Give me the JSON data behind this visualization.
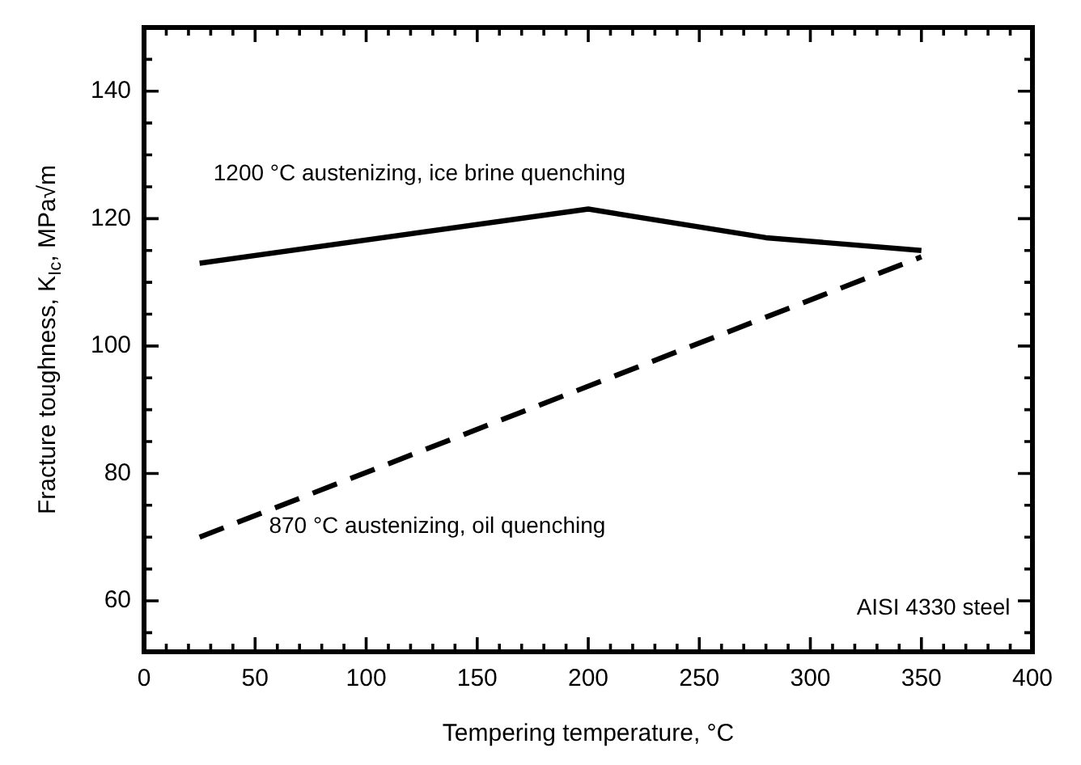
{
  "chart_data": {
    "type": "line",
    "xlabel": "Tempering temperature, °C",
    "ylabel": "Fracture toughness, K$_{Ic}$, MPa√m",
    "xlim": [
      0,
      400
    ],
    "ylim": [
      52,
      150
    ],
    "xticks": [
      0,
      {
        "value": 10,
        "label": null
      },
      {
        "value": 20,
        "label": null
      },
      {
        "value": 30,
        "label": null
      },
      {
        "value": 40,
        "label": null
      },
      50,
      {
        "value": 60,
        "label": null
      },
      {
        "value": 70,
        "label": null
      },
      {
        "value": 80,
        "label": null
      },
      {
        "value": 90,
        "label": null
      },
      100,
      {
        "value": 110,
        "label": null
      },
      {
        "value": 120,
        "label": null
      },
      {
        "value": 130,
        "label": null
      },
      {
        "value": 140,
        "label": null
      },
      150,
      {
        "value": 160,
        "label": null
      },
      {
        "value": 170,
        "label": null
      },
      {
        "value": 180,
        "label": null
      },
      {
        "value": 190,
        "label": null
      },
      200,
      {
        "value": 210,
        "label": null
      },
      {
        "value": 220,
        "label": null
      },
      {
        "value": 230,
        "label": null
      },
      {
        "value": 240,
        "label": null
      },
      250,
      {
        "value": 260,
        "label": null
      },
      {
        "value": 270,
        "label": null
      },
      {
        "value": 280,
        "label": null
      },
      {
        "value": 290,
        "label": null
      },
      300,
      {
        "value": 310,
        "label": null
      },
      {
        "value": 320,
        "label": null
      },
      {
        "value": 330,
        "label": null
      },
      {
        "value": 340,
        "label": null
      },
      350,
      {
        "value": 360,
        "label": null
      },
      {
        "value": 370,
        "label": null
      },
      {
        "value": 380,
        "label": null
      },
      {
        "value": 390,
        "label": null
      },
      400
    ],
    "yticks": [
      {
        "value": 55,
        "label": null
      },
      60,
      {
        "value": 65,
        "label": null
      },
      {
        "value": 70,
        "label": null
      },
      {
        "value": 75,
        "label": null
      },
      80,
      {
        "value": 85,
        "label": null
      },
      {
        "value": 90,
        "label": null
      },
      {
        "value": 95,
        "label": null
      },
      100,
      {
        "value": 105,
        "label": null
      },
      {
        "value": 110,
        "label": null
      },
      {
        "value": 115,
        "label": null
      },
      120,
      {
        "value": 125,
        "label": null
      },
      {
        "value": 130,
        "label": null
      },
      {
        "value": 135,
        "label": null
      },
      140,
      {
        "value": 145,
        "label": null
      }
    ],
    "series": [
      {
        "color": "#000000",
        "x": [
          25,
          200,
          280,
          350
        ],
        "values": [
          113,
          121.5,
          117,
          115
        ],
        "line_style": "solid"
      },
      {
        "color": "#000000",
        "x": [
          25,
          350
        ],
        "values": [
          70,
          114
        ],
        "line_style": "dashed"
      }
    ],
    "annotations": [
      "1200 °C austenizing, ice brine quenching",
      "870 °C austenizing, oil quenching",
      "AISI 4330 steel"
    ],
    "grid": false,
    "legend": false,
    "marker": "none"
  }
}
